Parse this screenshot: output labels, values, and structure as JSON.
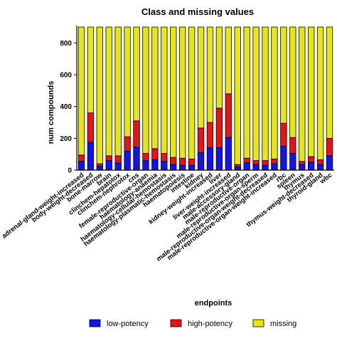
{
  "chart_data": {
    "type": "bar",
    "stacked": true,
    "title": "Class and missing values",
    "xlabel": "endpoints",
    "ylabel": "num compounds",
    "ylim": [
      0,
      900
    ],
    "yticks": [
      0,
      200,
      400,
      600,
      800
    ],
    "grid": false,
    "legend_position": "bottom",
    "categories": [
      "adrenal-gland-weight-increased",
      "body-weight-decreased",
      "bone-marrow",
      "brain",
      "clinchem-hepatotox",
      "clinchem-nephrotox",
      "cns",
      "female-reproductive-organ",
      "haematology-anaemia",
      "haematology-cellular-hemostasis",
      "haematology-plasmatic-hemostasis",
      "haematopoiesis",
      "intestine",
      "kidney",
      "kidney-weight-increased",
      "liver",
      "liver-weight-increased",
      "male-accessory-gland",
      "male-reproductive-organ",
      "male-reproductive-organ-sperm",
      "male-reproductive-organ-weight-decreased",
      "male-reproductive-organ-weight-increased",
      "rbc",
      "spleen",
      "thymus",
      "thymus-weight-decreased",
      "thyroid-gland",
      "wbc"
    ],
    "series": [
      {
        "name": "low-potency",
        "color": "#1414e6",
        "values": [
          55,
          175,
          25,
          60,
          45,
          120,
          145,
          60,
          65,
          55,
          35,
          30,
          30,
          110,
          140,
          140,
          205,
          20,
          45,
          35,
          30,
          40,
          150,
          105,
          35,
          50,
          35,
          90
        ]
      },
      {
        "name": "high-potency",
        "color": "#e61414",
        "values": [
          40,
          185,
          15,
          30,
          45,
          90,
          165,
          45,
          70,
          50,
          45,
          45,
          40,
          155,
          160,
          250,
          275,
          15,
          30,
          25,
          30,
          30,
          145,
          100,
          20,
          35,
          30,
          110
        ]
      },
      {
        "name": "missing",
        "color": "#e6e614",
        "values": [
          805,
          540,
          860,
          810,
          810,
          690,
          590,
          795,
          765,
          795,
          820,
          825,
          830,
          635,
          600,
          510,
          420,
          865,
          825,
          840,
          840,
          830,
          605,
          695,
          845,
          815,
          835,
          700
        ]
      }
    ]
  }
}
